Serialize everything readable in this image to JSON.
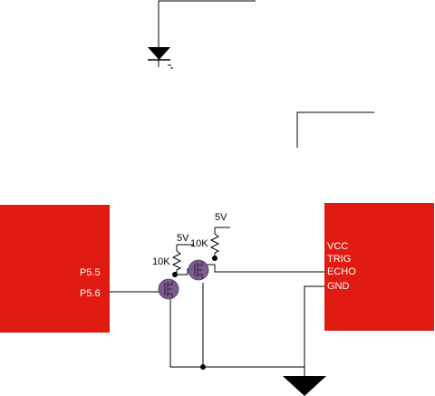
{
  "colors": {
    "block_fill": "#e01b12",
    "block_text": "#ffffff",
    "transistor_fill": "#7f5a91",
    "wire": "#000000"
  },
  "mcu": {
    "pin_p55": "P5.5",
    "pin_p56": "P5.6"
  },
  "sensor": {
    "pin_vcc": "VCC",
    "pin_trig": "TRIG",
    "pin_echo": "ECHO",
    "pin_gnd": "GND"
  },
  "left_pullup": {
    "supply": "5V",
    "resistor": "10K"
  },
  "right_pullup": {
    "supply": "5V",
    "resistor": "10K"
  },
  "icons": [
    "led-icon",
    "mosfet-icon",
    "resistor-icon",
    "ground-icon"
  ]
}
